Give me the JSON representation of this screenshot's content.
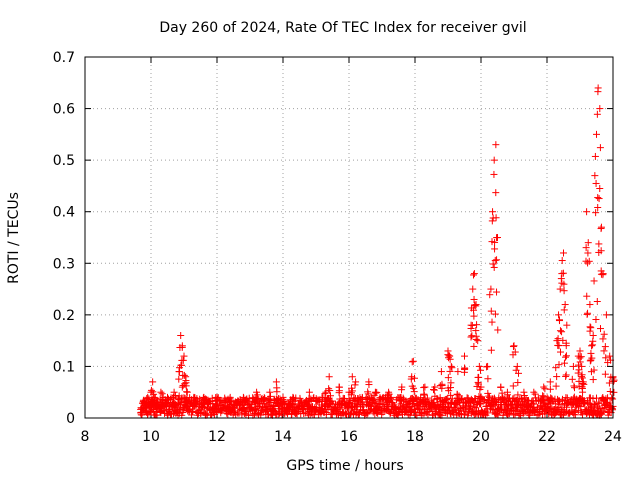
{
  "chart_data": {
    "type": "scatter",
    "title": "Day 260 of 2024, Rate Of TEC Index for receiver gvil",
    "xlabel": "GPS time / hours",
    "ylabel": "ROTI / TECUs",
    "xlim": [
      8,
      24
    ],
    "ylim": [
      0,
      0.7
    ],
    "x_ticks": [
      8,
      10,
      12,
      14,
      16,
      18,
      20,
      22,
      24
    ],
    "x_tick_labels": [
      "8",
      "10",
      "12",
      "14",
      "16",
      "18",
      "20",
      "22",
      "24"
    ],
    "y_ticks": [
      0,
      0.1,
      0.2,
      0.3,
      0.4,
      0.5,
      0.6,
      0.7
    ],
    "y_tick_labels": [
      "0",
      "0.1",
      "0.2",
      "0.3",
      "0.4",
      "0.5",
      "0.6",
      "0.7"
    ],
    "grid": true,
    "marker": "plus",
    "series_color": "#ff0000",
    "series": [
      {
        "name": "ROTI",
        "x": [
          9.7,
          9.8,
          9.9,
          10.0,
          10.05,
          10.1,
          10.2,
          10.3,
          10.5,
          10.7,
          10.85,
          10.9,
          10.95,
          11.0,
          11.05,
          11.1,
          11.3,
          11.6,
          12.0,
          12.4,
          12.8,
          13.2,
          13.6,
          13.8,
          14.0,
          14.3,
          14.8,
          15.3,
          15.4,
          15.7,
          16.0,
          16.1,
          16.2,
          16.6,
          16.8,
          17.2,
          17.6,
          17.9,
          17.95,
          18.3,
          18.6,
          18.8,
          19.0,
          19.05,
          19.1,
          19.3,
          19.5,
          19.7,
          19.75,
          19.8,
          19.85,
          19.9,
          19.95,
          20.0,
          20.2,
          20.3,
          20.35,
          20.4,
          20.45,
          20.5,
          20.6,
          20.8,
          21.0,
          21.1,
          21.3,
          21.6,
          21.9,
          22.1,
          22.3,
          22.35,
          22.4,
          22.45,
          22.5,
          22.55,
          22.6,
          22.8,
          22.95,
          23.0,
          23.05,
          23.1,
          23.2,
          23.25,
          23.3,
          23.35,
          23.4,
          23.45,
          23.5,
          23.55,
          23.6,
          23.65,
          23.7,
          23.8,
          23.9,
          24.0
        ],
        "y": [
          0.02,
          0.03,
          0.04,
          0.05,
          0.07,
          0.04,
          0.03,
          0.05,
          0.04,
          0.05,
          0.09,
          0.16,
          0.14,
          0.12,
          0.08,
          0.05,
          0.04,
          0.04,
          0.04,
          0.04,
          0.04,
          0.05,
          0.05,
          0.07,
          0.04,
          0.04,
          0.05,
          0.05,
          0.08,
          0.06,
          0.05,
          0.08,
          0.07,
          0.07,
          0.05,
          0.05,
          0.06,
          0.08,
          0.11,
          0.06,
          0.06,
          0.09,
          0.13,
          0.12,
          0.1,
          0.09,
          0.12,
          0.18,
          0.25,
          0.28,
          0.22,
          0.15,
          0.1,
          0.06,
          0.1,
          0.25,
          0.4,
          0.5,
          0.53,
          0.35,
          0.06,
          0.05,
          0.14,
          0.1,
          0.05,
          0.05,
          0.06,
          0.07,
          0.15,
          0.2,
          0.25,
          0.28,
          0.32,
          0.22,
          0.18,
          0.1,
          0.12,
          0.13,
          0.1,
          0.07,
          0.4,
          0.34,
          0.22,
          0.14,
          0.16,
          0.47,
          0.55,
          0.64,
          0.6,
          0.37,
          0.28,
          0.2,
          0.12,
          0.08
        ]
      }
    ],
    "background_band": {
      "description": "dense cluster of low ROTI values between 9.7 and 24 hours",
      "x_range": [
        9.7,
        24.0
      ],
      "y_range": [
        0.005,
        0.04
      ]
    }
  }
}
